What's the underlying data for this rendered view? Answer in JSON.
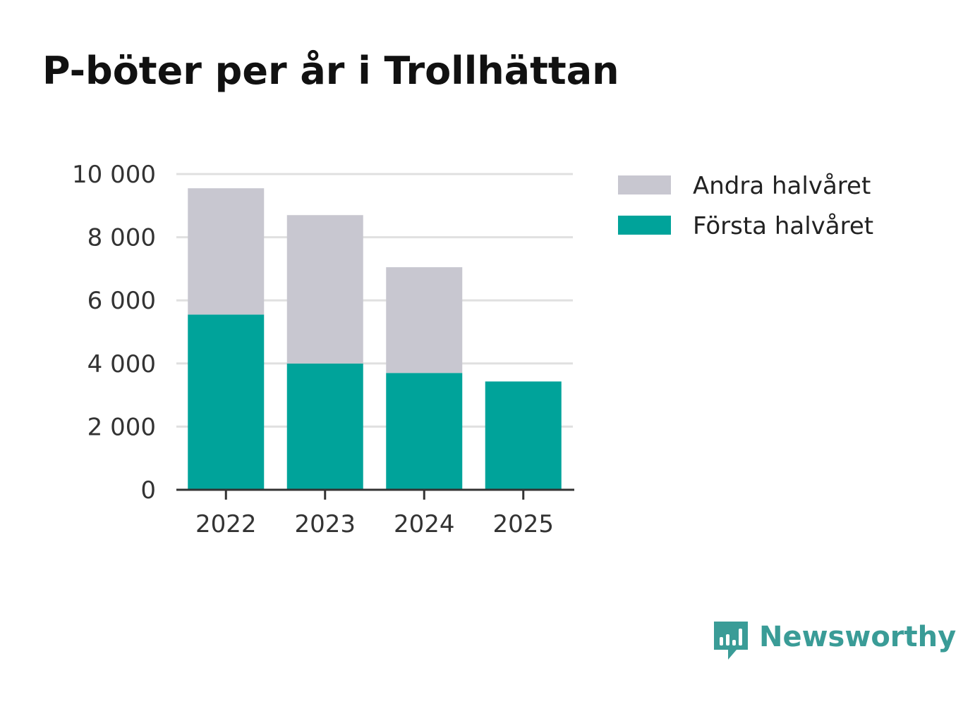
{
  "title": "P-böter per år i Trollhättan",
  "colors": {
    "first_half": "#00a39a",
    "second_half": "#c8c7d0",
    "grid": "#e0e0e0",
    "axis": "#333333",
    "logo": "#3a9c97"
  },
  "chart_data": {
    "type": "bar",
    "stacked": true,
    "title": "P-böter per år i Trollhättan",
    "xlabel": "",
    "ylabel": "",
    "categories": [
      "2022",
      "2023",
      "2024",
      "2025"
    ],
    "series": [
      {
        "name": "Första halvåret",
        "key": "first_half",
        "values": [
          5550,
          4000,
          3700,
          3430
        ]
      },
      {
        "name": "Andra halvåret",
        "key": "second_half",
        "values": [
          4000,
          4700,
          3350,
          0
        ]
      }
    ],
    "ylim": [
      0,
      10000
    ],
    "yticks": [
      0,
      2000,
      4000,
      6000,
      8000,
      10000
    ],
    "ytick_labels": [
      "0",
      "2 000",
      "4 000",
      "6 000",
      "8 000",
      "10 000"
    ],
    "grid": true,
    "legend_position": "top-right",
    "legend_order": [
      "Andra halvåret",
      "Första halvåret"
    ]
  },
  "branding": {
    "logo_icon": "newsworthy-bar-chart-icon",
    "logo_text": "Newsworthy"
  }
}
